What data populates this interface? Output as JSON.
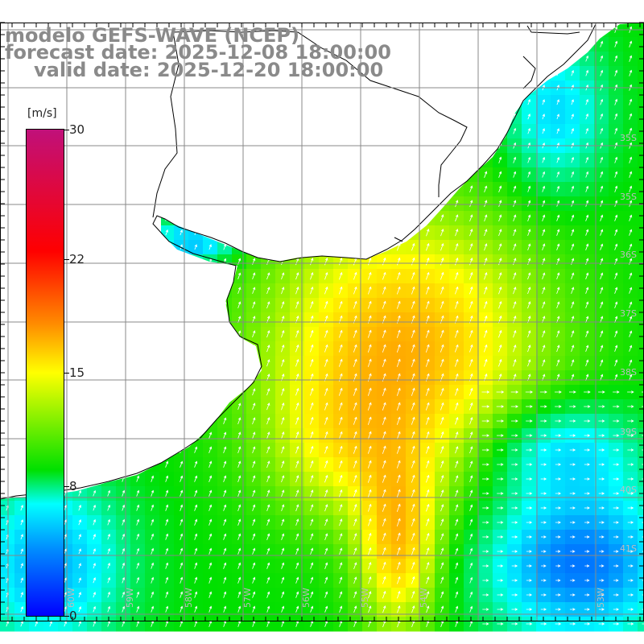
{
  "title": {
    "line1": "modelo GEFS-WAVE (NCEP)",
    "line2": "forecast date: 2025-12-08 18:00:00",
    "line3": "valid date: 2025-12-20 18:00:00"
  },
  "colorbar": {
    "units": "[m/s]",
    "min": 0,
    "max": 30,
    "ticks": [
      {
        "value": 30,
        "label": "30"
      },
      {
        "value": 22,
        "label": "22"
      },
      {
        "value": 15,
        "label": "15"
      },
      {
        "value": 8,
        "label": "8"
      },
      {
        "value": 0,
        "label": "0"
      }
    ],
    "colors": [
      "#0000ff",
      "#0090ff",
      "#00ffff",
      "#00e000",
      "#ffff00",
      "#ff8c00",
      "#ff0000",
      "#c0107a"
    ]
  },
  "map": {
    "lat_labels": [
      "35S",
      "35S",
      "36S",
      "37S",
      "38S",
      "39S",
      "40S",
      "41S"
    ],
    "lon_labels": [
      "60W",
      "59W",
      "58W",
      "57W",
      "56W",
      "55W",
      "54W",
      "53W"
    ],
    "land_color": "#ffffff",
    "grid_color": "#888888"
  }
}
